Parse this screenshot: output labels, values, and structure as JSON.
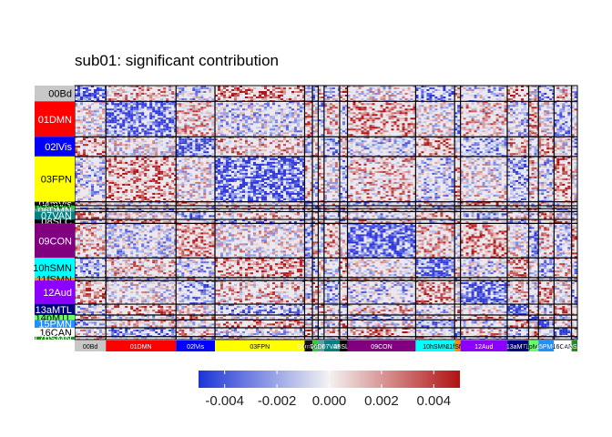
{
  "chart_data": {
    "type": "heatmap",
    "title": "sub01: significant contribution",
    "xlabel": "",
    "ylabel": "",
    "networks": [
      {
        "label": "00Bd",
        "color": "#c8c8c8",
        "size": 16
      },
      {
        "label": "01DMN",
        "color": "#ff0000",
        "size": 36
      },
      {
        "label": "02lVis",
        "color": "#0000ff",
        "size": 20
      },
      {
        "label": "03FPN",
        "color": "#ffff00",
        "size": 46
      },
      {
        "label": "04mVis",
        "color": "#111111",
        "size": 4
      },
      {
        "label": "05dFPN",
        "color": "#2ecc40",
        "size": 3
      },
      {
        "label": "06DMN",
        "color": "#5f9ea0",
        "size": 3
      },
      {
        "label": "07VAN",
        "color": "#008080",
        "size": 8
      },
      {
        "label": "08SLC",
        "color": "#000000",
        "size": 4
      },
      {
        "label": "09CON",
        "color": "#800080",
        "size": 35
      },
      {
        "label": "10hSMN",
        "color": "#00ffff",
        "size": 20
      },
      {
        "label": "11fSMN",
        "color": "#ff8c00",
        "size": 3
      },
      {
        "label": "12Aud",
        "color": "#8b00ff",
        "size": 24
      },
      {
        "label": "13aMTL",
        "color": "#000080",
        "size": 11
      },
      {
        "label": "14pMTL",
        "color": "#66ff66",
        "size": 5
      },
      {
        "label": "15PMN",
        "color": "#1e90ff",
        "size": 8
      },
      {
        "label": "16CAN",
        "color": "#ffffff",
        "size": 9
      },
      {
        "label": "17pSMN",
        "color": "#228b22",
        "size": 3
      }
    ],
    "colorbar": {
      "min": -0.005,
      "max": 0.005,
      "ticks": [
        -0.004,
        -0.002,
        0.0,
        0.002,
        0.004
      ],
      "tick_labels": [
        "-0.004",
        "-0.002",
        "0.000",
        "0.002",
        "0.004"
      ],
      "colors": [
        "#1b35d6",
        "#ffffff",
        "#b01212"
      ]
    },
    "grid": false,
    "legend": "bottom"
  }
}
